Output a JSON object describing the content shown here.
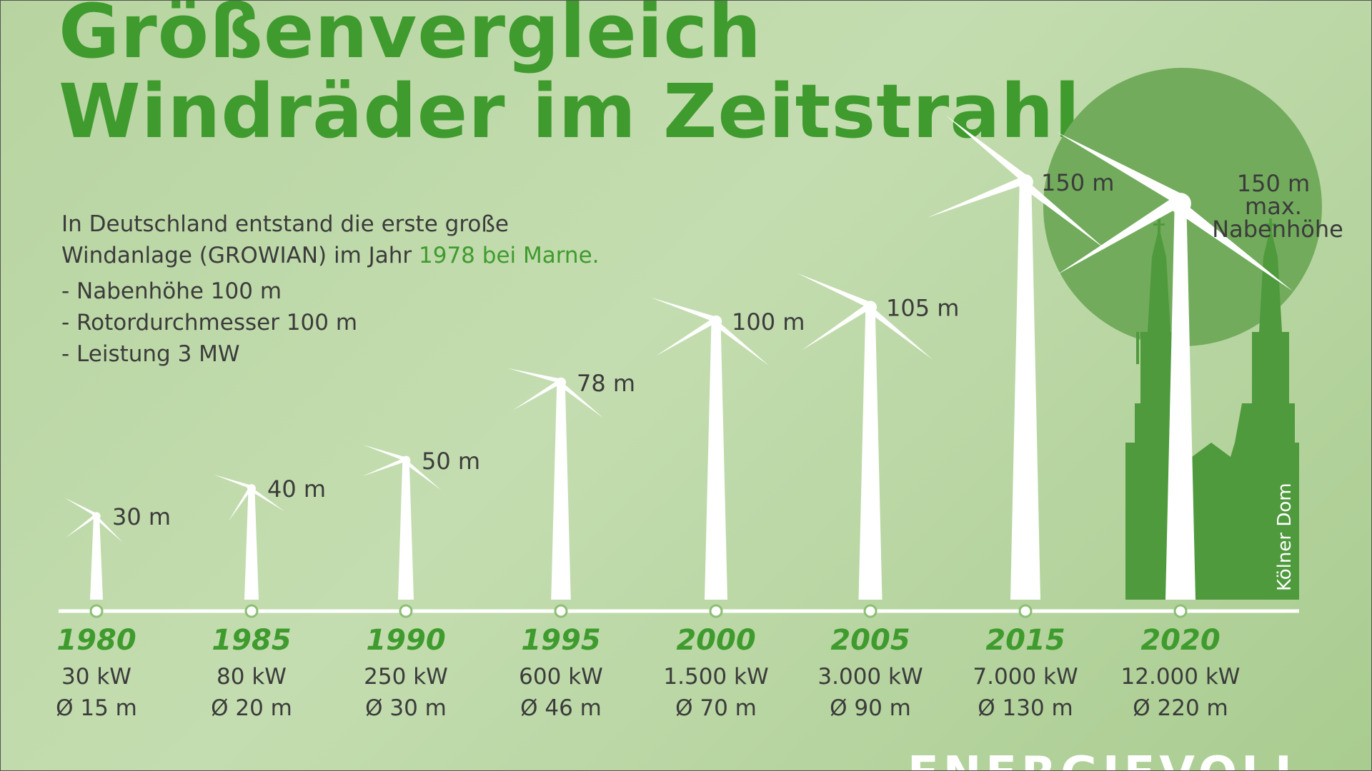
{
  "title": {
    "line1": "Größenvergleich",
    "line2": "Windräder im Zeitstrahl"
  },
  "intro": {
    "line1": "In Deutschland entstand die erste große",
    "line2_prefix": "Windanlage (GROWIAN) im Jahr ",
    "line2_highlight": "1978 bei Marne.",
    "facts": [
      "- Nabenhöhe 100 m",
      "- Rotordurchmesser 100 m",
      "- Leistung 3 MW"
    ]
  },
  "turbines": [
    {
      "year": "1980",
      "power": "30 kW",
      "diameter": "Ø 15 m",
      "height_label": "30 m",
      "height_m": 30,
      "rotor_m": 15
    },
    {
      "year": "1985",
      "power": "80 kW",
      "diameter": "Ø 20 m",
      "height_label": "40 m",
      "height_m": 40,
      "rotor_m": 20
    },
    {
      "year": "1990",
      "power": "250 kW",
      "diameter": "Ø 30 m",
      "height_label": "50 m",
      "height_m": 50,
      "rotor_m": 30
    },
    {
      "year": "1995",
      "power": "600 kW",
      "diameter": "Ø 46 m",
      "height_label": "78 m",
      "height_m": 78,
      "rotor_m": 46
    },
    {
      "year": "2000",
      "power": "1.500 kW",
      "diameter": "Ø 70 m",
      "height_label": "100 m",
      "height_m": 100,
      "rotor_m": 70
    },
    {
      "year": "2005",
      "power": "3.000 kW",
      "diameter": "Ø 90 m",
      "height_label": "105 m",
      "height_m": 105,
      "rotor_m": 90
    },
    {
      "year": "2015",
      "power": "7.000 kW",
      "diameter": "Ø 130 m",
      "height_label": "150 m",
      "height_m": 150,
      "rotor_m": 130
    },
    {
      "year": "2020",
      "power": "12.000 kW",
      "diameter": "Ø 220 m",
      "height_label": "",
      "height_m": 150,
      "rotor_m": 220
    }
  ],
  "highlight": {
    "line1": "150 m",
    "line2": "max.",
    "line3": "Nabenhöhe"
  },
  "landmark": "Kölner Dom",
  "brand": "ENERGIEVOLL",
  "colors": {
    "accent": "#3f9b2e",
    "cathedral": "#4e9a3c",
    "circle": "#72ab5c",
    "turbine": "#ffffff",
    "text": "#3b3b3b"
  }
}
